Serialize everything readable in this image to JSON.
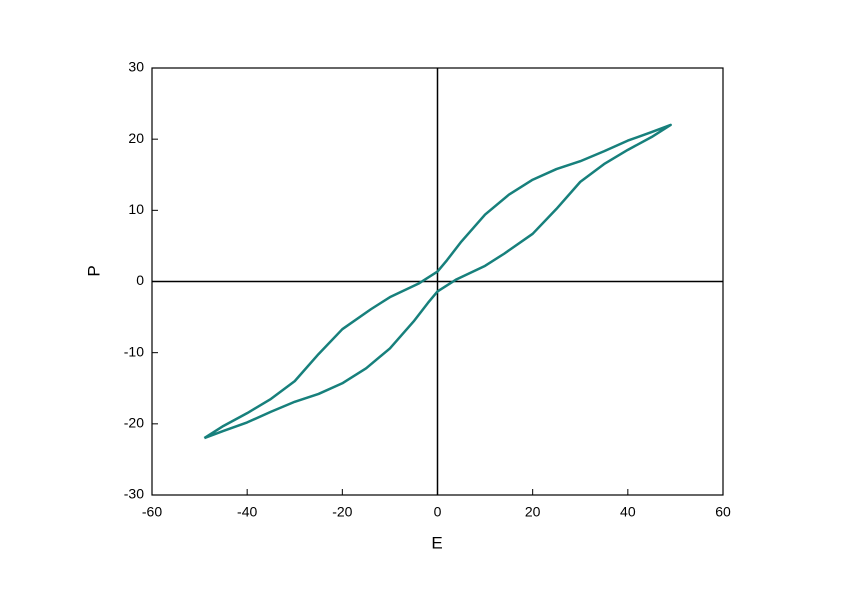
{
  "chart_data": {
    "type": "line",
    "xlabel": "E",
    "ylabel": "P",
    "x": [
      -49,
      -45,
      -40,
      -35,
      -30,
      -25,
      -20,
      -15,
      -10,
      -5,
      -2,
      0,
      4,
      10,
      14,
      20,
      25,
      30,
      35,
      40,
      45,
      49,
      45,
      40,
      35,
      30,
      25,
      20,
      15,
      10,
      5,
      2,
      0,
      -4,
      -10,
      -14,
      -20,
      -25,
      -30,
      -35,
      -40,
      -45,
      -49
    ],
    "series": [
      {
        "color": "#17807c",
        "values": [
          -22,
          -21,
          -19.8,
          -18.3,
          -16.9,
          -15.8,
          -14.3,
          -12.2,
          -9.4,
          -5.6,
          -3.0,
          -1.4,
          0.3,
          2.2,
          3.9,
          6.7,
          10.2,
          14,
          16.5,
          18.5,
          20.3,
          22,
          21,
          19.8,
          18.3,
          16.9,
          15.8,
          14.3,
          12.2,
          9.4,
          5.6,
          3.0,
          1.4,
          -0.3,
          -2.2,
          -3.9,
          -6.7,
          -10.2,
          -14,
          -16.5,
          -18.5,
          -20.3,
          -22
        ]
      }
    ],
    "xlim": [
      -60,
      60
    ],
    "xticks": [
      -60,
      -40,
      -20,
      0,
      20,
      40,
      60
    ],
    "ylim": [
      -30,
      30
    ],
    "yticks": [
      -30,
      -20,
      -10,
      0,
      10,
      20,
      30
    ],
    "zero_lines": true
  }
}
